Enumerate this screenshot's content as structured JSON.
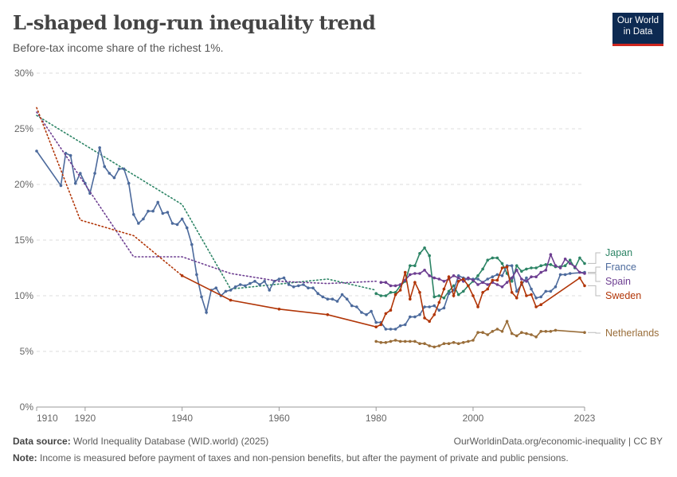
{
  "title": "L-shaped long-run inequality trend",
  "subtitle": "Before-tax income share of the richest 1%.",
  "logo": "Our World in Data",
  "footer": {
    "source_label": "Data source:",
    "source": "World Inequality Database (WID.world) (2025)",
    "url": "OurWorldinData.org/economic-inequality | CC BY",
    "note_label": "Note:",
    "note": "Income is measured before payment of taxes and non-pension benefits, but after the payment of private and public pensions."
  },
  "chart_data": {
    "type": "line",
    "title": "L-shaped long-run inequality trend",
    "ylabel": "",
    "xlabel": "",
    "xlim": [
      1910,
      2023
    ],
    "ylim": [
      0,
      30
    ],
    "x_ticks": [
      1910,
      1920,
      1940,
      1960,
      1980,
      2000,
      2023
    ],
    "y_ticks": [
      0,
      5,
      10,
      15,
      20,
      25,
      30
    ],
    "y_tick_labels": [
      "0%",
      "5%",
      "10%",
      "15%",
      "20%",
      "25%",
      "30%"
    ],
    "grid": "horizontal dashed",
    "legend": "right, labels at line ends",
    "series": [
      {
        "name": "Japan",
        "color": "#2c8465",
        "dotted": [
          [
            1910,
            26.2
          ],
          [
            1940,
            18.2
          ],
          [
            1950,
            10.6
          ],
          [
            1970,
            11.5
          ],
          [
            1980,
            10.5
          ]
        ],
        "points": [
          [
            1980,
            10.2
          ],
          [
            1981,
            10.0
          ],
          [
            1982,
            10.0
          ],
          [
            1983,
            10.3
          ],
          [
            1984,
            10.3
          ],
          [
            1985,
            10.9
          ],
          [
            1986,
            11.3
          ],
          [
            1987,
            12.7
          ],
          [
            1988,
            12.7
          ],
          [
            1989,
            13.8
          ],
          [
            1990,
            14.3
          ],
          [
            1991,
            13.6
          ],
          [
            1992,
            9.9
          ],
          [
            1993,
            10.0
          ],
          [
            1994,
            9.8
          ],
          [
            1995,
            10.4
          ],
          [
            1996,
            10.9
          ],
          [
            1997,
            10.1
          ],
          [
            1998,
            10.4
          ],
          [
            1999,
            10.9
          ],
          [
            2000,
            11.3
          ],
          [
            2001,
            11.8
          ],
          [
            2002,
            12.4
          ],
          [
            2003,
            13.2
          ],
          [
            2004,
            13.4
          ],
          [
            2005,
            13.4
          ],
          [
            2006,
            12.9
          ],
          [
            2007,
            12.0
          ],
          [
            2008,
            11.3
          ],
          [
            2009,
            12.7
          ],
          [
            2010,
            12.2
          ],
          [
            2011,
            12.4
          ],
          [
            2012,
            12.5
          ],
          [
            2013,
            12.5
          ],
          [
            2014,
            12.7
          ],
          [
            2015,
            12.8
          ],
          [
            2016,
            12.8
          ],
          [
            2017,
            12.6
          ],
          [
            2018,
            12.6
          ],
          [
            2019,
            12.7
          ],
          [
            2020,
            13.2
          ],
          [
            2021,
            12.5
          ],
          [
            2022,
            13.4
          ],
          [
            2023,
            12.9
          ]
        ]
      },
      {
        "name": "France",
        "color": "#4c6a9c",
        "dotted": [],
        "points": [
          [
            1910,
            23.0
          ],
          [
            1915,
            19.9
          ],
          [
            1916,
            22.8
          ],
          [
            1917,
            22.6
          ],
          [
            1918,
            20.1
          ],
          [
            1919,
            21.0
          ],
          [
            1920,
            20.1
          ],
          [
            1921,
            19.2
          ],
          [
            1922,
            21.0
          ],
          [
            1923,
            23.3
          ],
          [
            1924,
            21.6
          ],
          [
            1925,
            21.0
          ],
          [
            1926,
            20.6
          ],
          [
            1927,
            21.4
          ],
          [
            1928,
            21.4
          ],
          [
            1929,
            20.1
          ],
          [
            1930,
            17.3
          ],
          [
            1931,
            16.5
          ],
          [
            1932,
            16.9
          ],
          [
            1933,
            17.6
          ],
          [
            1934,
            17.6
          ],
          [
            1935,
            18.4
          ],
          [
            1936,
            17.4
          ],
          [
            1937,
            17.5
          ],
          [
            1938,
            16.5
          ],
          [
            1939,
            16.4
          ],
          [
            1940,
            16.9
          ],
          [
            1941,
            16.1
          ],
          [
            1942,
            14.6
          ],
          [
            1943,
            11.9
          ],
          [
            1944,
            9.9
          ],
          [
            1945,
            8.5
          ],
          [
            1946,
            10.5
          ],
          [
            1947,
            10.7
          ],
          [
            1948,
            10.0
          ],
          [
            1949,
            10.4
          ],
          [
            1950,
            10.5
          ],
          [
            1951,
            10.8
          ],
          [
            1952,
            11.0
          ],
          [
            1953,
            10.9
          ],
          [
            1954,
            11.1
          ],
          [
            1955,
            11.3
          ],
          [
            1956,
            11.0
          ],
          [
            1957,
            11.3
          ],
          [
            1958,
            10.5
          ],
          [
            1959,
            11.3
          ],
          [
            1960,
            11.5
          ],
          [
            1961,
            11.6
          ],
          [
            1962,
            11.0
          ],
          [
            1963,
            10.8
          ],
          [
            1964,
            10.9
          ],
          [
            1965,
            11.0
          ],
          [
            1966,
            10.7
          ],
          [
            1967,
            10.7
          ],
          [
            1968,
            10.2
          ],
          [
            1969,
            9.9
          ],
          [
            1970,
            9.7
          ],
          [
            1971,
            9.7
          ],
          [
            1972,
            9.5
          ],
          [
            1973,
            10.1
          ],
          [
            1974,
            9.7
          ],
          [
            1975,
            9.1
          ],
          [
            1976,
            9.0
          ],
          [
            1977,
            8.5
          ],
          [
            1978,
            8.3
          ],
          [
            1979,
            8.6
          ],
          [
            1980,
            7.6
          ],
          [
            1981,
            7.6
          ],
          [
            1982,
            7.0
          ],
          [
            1983,
            7.0
          ],
          [
            1984,
            7.0
          ],
          [
            1985,
            7.3
          ],
          [
            1986,
            7.4
          ],
          [
            1987,
            8.1
          ],
          [
            1988,
            8.1
          ],
          [
            1989,
            8.3
          ],
          [
            1990,
            9.0
          ],
          [
            1991,
            9.0
          ],
          [
            1992,
            9.1
          ],
          [
            1993,
            8.7
          ],
          [
            1994,
            8.9
          ],
          [
            1995,
            10.2
          ],
          [
            1996,
            10.5
          ],
          [
            1997,
            11.8
          ],
          [
            1998,
            11.6
          ],
          [
            1999,
            11.5
          ],
          [
            2000,
            11.5
          ],
          [
            2001,
            11.5
          ],
          [
            2002,
            11.2
          ],
          [
            2003,
            11.5
          ],
          [
            2004,
            11.7
          ],
          [
            2005,
            11.9
          ],
          [
            2006,
            11.8
          ],
          [
            2007,
            12.7
          ],
          [
            2008,
            12.7
          ],
          [
            2009,
            10.4
          ],
          [
            2010,
            11.0
          ],
          [
            2011,
            11.6
          ],
          [
            2012,
            10.6
          ],
          [
            2013,
            9.8
          ],
          [
            2014,
            9.9
          ],
          [
            2015,
            10.4
          ],
          [
            2016,
            10.4
          ],
          [
            2017,
            10.8
          ],
          [
            2018,
            11.9
          ],
          [
            2019,
            11.9
          ],
          [
            2020,
            12.0
          ],
          [
            2023,
            12.1
          ]
        ]
      },
      {
        "name": "Spain",
        "color": "#6d3e91",
        "dotted": [
          [
            1910,
            26.5
          ],
          [
            1930,
            13.5
          ],
          [
            1940,
            13.5
          ],
          [
            1950,
            12.0
          ],
          [
            1960,
            11.3
          ],
          [
            1970,
            11.1
          ],
          [
            1980,
            11.3
          ]
        ],
        "points": [
          [
            1981,
            11.2
          ],
          [
            1982,
            11.2
          ],
          [
            1983,
            10.9
          ],
          [
            1984,
            10.9
          ],
          [
            1985,
            11.0
          ],
          [
            1986,
            11.4
          ],
          [
            1987,
            11.9
          ],
          [
            1988,
            12.0
          ],
          [
            1989,
            12.0
          ],
          [
            1990,
            12.3
          ],
          [
            1991,
            11.8
          ],
          [
            1992,
            11.6
          ],
          [
            1993,
            11.5
          ],
          [
            1994,
            11.3
          ],
          [
            1995,
            11.5
          ],
          [
            1996,
            11.8
          ],
          [
            1997,
            11.6
          ],
          [
            1998,
            11.3
          ],
          [
            1999,
            11.6
          ],
          [
            2000,
            11.4
          ],
          [
            2001,
            11.0
          ],
          [
            2002,
            11.2
          ],
          [
            2003,
            11.0
          ],
          [
            2004,
            11.2
          ],
          [
            2005,
            11.0
          ],
          [
            2006,
            10.8
          ],
          [
            2007,
            11.2
          ],
          [
            2008,
            11.6
          ],
          [
            2009,
            12.3
          ],
          [
            2010,
            11.5
          ],
          [
            2011,
            11.3
          ],
          [
            2012,
            11.7
          ],
          [
            2013,
            11.7
          ],
          [
            2014,
            12.1
          ],
          [
            2015,
            12.3
          ],
          [
            2016,
            13.7
          ],
          [
            2017,
            12.7
          ],
          [
            2018,
            12.5
          ],
          [
            2019,
            13.3
          ],
          [
            2020,
            12.9
          ],
          [
            2021,
            12.6
          ],
          [
            2022,
            12.1
          ],
          [
            2023,
            12.0
          ]
        ]
      },
      {
        "name": "Sweden",
        "color": "#b13507",
        "dotted": [
          [
            1910,
            26.9
          ],
          [
            1919,
            16.8
          ],
          [
            1930,
            15.4
          ],
          [
            1940,
            11.8
          ]
        ],
        "points": [
          [
            1940,
            11.8
          ],
          [
            1950,
            9.6
          ],
          [
            1960,
            8.8
          ],
          [
            1970,
            8.3
          ],
          [
            1980,
            7.2
          ],
          [
            1981,
            7.4
          ],
          [
            1982,
            8.4
          ],
          [
            1983,
            8.7
          ],
          [
            1984,
            10.1
          ],
          [
            1985,
            10.5
          ],
          [
            1986,
            12.1
          ],
          [
            1987,
            9.7
          ],
          [
            1988,
            11.2
          ],
          [
            1989,
            10.3
          ],
          [
            1990,
            8.0
          ],
          [
            1991,
            7.7
          ],
          [
            1992,
            8.3
          ],
          [
            1993,
            9.4
          ],
          [
            1994,
            10.6
          ],
          [
            1995,
            11.7
          ],
          [
            1996,
            10.0
          ],
          [
            1997,
            11.3
          ],
          [
            1998,
            11.5
          ],
          [
            1999,
            10.9
          ],
          [
            2000,
            10.0
          ],
          [
            2001,
            9.0
          ],
          [
            2002,
            10.3
          ],
          [
            2003,
            10.6
          ],
          [
            2004,
            11.4
          ],
          [
            2005,
            11.4
          ],
          [
            2006,
            12.5
          ],
          [
            2007,
            12.6
          ],
          [
            2008,
            10.3
          ],
          [
            2009,
            9.8
          ],
          [
            2010,
            11.2
          ],
          [
            2011,
            10.0
          ],
          [
            2012,
            10.1
          ],
          [
            2013,
            9.0
          ],
          [
            2014,
            9.2
          ],
          [
            2022,
            11.6
          ],
          [
            2023,
            10.9
          ]
        ]
      },
      {
        "name": "Netherlands",
        "color": "#996d39",
        "dotted": [],
        "points": [
          [
            1980,
            5.9
          ],
          [
            1981,
            5.8
          ],
          [
            1982,
            5.8
          ],
          [
            1983,
            5.9
          ],
          [
            1984,
            6.0
          ],
          [
            1985,
            5.9
          ],
          [
            1986,
            5.9
          ],
          [
            1987,
            5.9
          ],
          [
            1988,
            5.9
          ],
          [
            1989,
            5.7
          ],
          [
            1990,
            5.7
          ],
          [
            1991,
            5.5
          ],
          [
            1992,
            5.4
          ],
          [
            1993,
            5.5
          ],
          [
            1994,
            5.7
          ],
          [
            1995,
            5.7
          ],
          [
            1996,
            5.8
          ],
          [
            1997,
            5.7
          ],
          [
            1998,
            5.8
          ],
          [
            1999,
            5.9
          ],
          [
            2000,
            6.0
          ],
          [
            2001,
            6.7
          ],
          [
            2002,
            6.7
          ],
          [
            2003,
            6.5
          ],
          [
            2004,
            6.8
          ],
          [
            2005,
            7.0
          ],
          [
            2006,
            6.8
          ],
          [
            2007,
            7.7
          ],
          [
            2008,
            6.6
          ],
          [
            2009,
            6.4
          ],
          [
            2010,
            6.7
          ],
          [
            2011,
            6.6
          ],
          [
            2012,
            6.5
          ],
          [
            2013,
            6.3
          ],
          [
            2014,
            6.8
          ],
          [
            2015,
            6.8
          ],
          [
            2016,
            6.8
          ],
          [
            2017,
            6.9
          ],
          [
            2023,
            6.7
          ]
        ]
      }
    ]
  }
}
